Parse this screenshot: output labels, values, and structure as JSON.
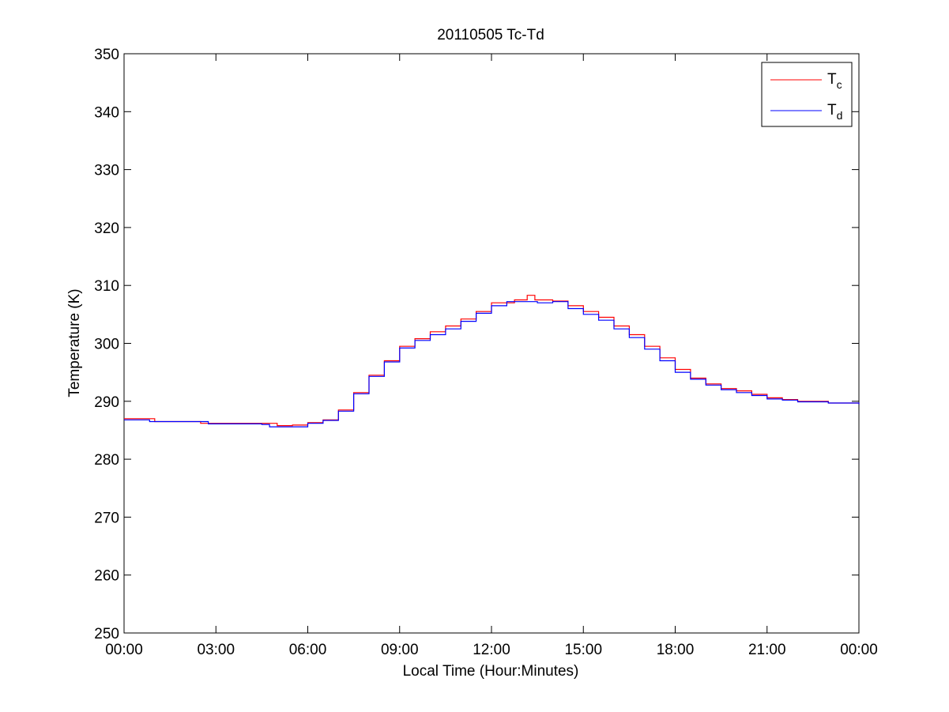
{
  "chart_data": {
    "type": "line",
    "title": "20110505 Tc-Td",
    "xlabel": "Local Time (Hour:Minutes)",
    "ylabel": "Temperature (K)",
    "xlim": [
      "00:00",
      "24:00"
    ],
    "ylim": [
      250,
      350
    ],
    "x_ticks": [
      "00:00",
      "03:00",
      "06:00",
      "09:00",
      "12:00",
      "15:00",
      "18:00",
      "21:00",
      "00:00"
    ],
    "y_ticks": [
      "250",
      "260",
      "270",
      "280",
      "290",
      "300",
      "310",
      "320",
      "330",
      "340",
      "350"
    ],
    "grid": false,
    "legend": "top-right",
    "series": [
      {
        "name": "Tc",
        "legend_main": "T",
        "legend_sub": "c",
        "color": "#ff0000",
        "points": [
          [
            "00:00",
            287.0
          ],
          [
            "00:40",
            287.0
          ],
          [
            "01:00",
            286.5
          ],
          [
            "02:15",
            286.5
          ],
          [
            "02:30",
            286.2
          ],
          [
            "04:30",
            286.2
          ],
          [
            "05:00",
            285.8
          ],
          [
            "05:30",
            285.9
          ],
          [
            "06:00",
            286.3
          ],
          [
            "06:30",
            286.8
          ],
          [
            "07:00",
            288.5
          ],
          [
            "07:30",
            291.5
          ],
          [
            "08:00",
            294.5
          ],
          [
            "08:30",
            297.0
          ],
          [
            "09:00",
            299.5
          ],
          [
            "09:30",
            300.8
          ],
          [
            "10:00",
            302.0
          ],
          [
            "10:30",
            303.0
          ],
          [
            "11:00",
            304.2
          ],
          [
            "11:30",
            305.5
          ],
          [
            "12:00",
            307.0
          ],
          [
            "12:45",
            307.5
          ],
          [
            "13:10",
            308.3
          ],
          [
            "13:25",
            307.5
          ],
          [
            "14:00",
            307.3
          ],
          [
            "14:30",
            306.5
          ],
          [
            "15:00",
            305.5
          ],
          [
            "15:30",
            304.5
          ],
          [
            "16:00",
            303.0
          ],
          [
            "16:30",
            301.5
          ],
          [
            "17:00",
            299.5
          ],
          [
            "17:30",
            297.5
          ],
          [
            "18:00",
            295.5
          ],
          [
            "18:30",
            294.0
          ],
          [
            "19:00",
            293.0
          ],
          [
            "19:30",
            292.2
          ],
          [
            "20:00",
            291.8
          ],
          [
            "20:30",
            291.2
          ],
          [
            "21:00",
            290.6
          ],
          [
            "21:30",
            290.3
          ],
          [
            "22:00",
            290.0
          ],
          [
            "22:45",
            290.0
          ],
          [
            "23:00",
            289.7
          ],
          [
            "24:00",
            289.5
          ]
        ]
      },
      {
        "name": "Td",
        "legend_main": "T",
        "legend_sub": "d",
        "color": "#0000ff",
        "points": [
          [
            "00:00",
            286.8
          ],
          [
            "00:40",
            286.8
          ],
          [
            "00:50",
            286.5
          ],
          [
            "02:30",
            286.5
          ],
          [
            "02:45",
            286.1
          ],
          [
            "04:30",
            286.0
          ],
          [
            "04:45",
            285.6
          ],
          [
            "05:30",
            285.6
          ],
          [
            "06:00",
            286.2
          ],
          [
            "06:30",
            286.7
          ],
          [
            "07:00",
            288.3
          ],
          [
            "07:30",
            291.3
          ],
          [
            "08:00",
            294.3
          ],
          [
            "08:30",
            296.8
          ],
          [
            "09:00",
            299.2
          ],
          [
            "09:30",
            300.5
          ],
          [
            "10:00",
            301.5
          ],
          [
            "10:30",
            302.5
          ],
          [
            "11:00",
            303.8
          ],
          [
            "11:30",
            305.2
          ],
          [
            "12:00",
            306.5
          ],
          [
            "12:30",
            307.2
          ],
          [
            "13:00",
            307.2
          ],
          [
            "13:30",
            307.0
          ],
          [
            "14:00",
            307.2
          ],
          [
            "14:30",
            306.0
          ],
          [
            "15:00",
            305.0
          ],
          [
            "15:30",
            304.0
          ],
          [
            "16:00",
            302.5
          ],
          [
            "16:30",
            301.0
          ],
          [
            "17:00",
            299.0
          ],
          [
            "17:30",
            297.0
          ],
          [
            "18:00",
            295.0
          ],
          [
            "18:30",
            293.8
          ],
          [
            "19:00",
            292.8
          ],
          [
            "19:30",
            292.0
          ],
          [
            "20:00",
            291.5
          ],
          [
            "20:30",
            291.0
          ],
          [
            "21:00",
            290.4
          ],
          [
            "21:30",
            290.2
          ],
          [
            "22:00",
            289.9
          ],
          [
            "23:00",
            289.7
          ],
          [
            "24:00",
            289.5
          ]
        ]
      }
    ]
  }
}
